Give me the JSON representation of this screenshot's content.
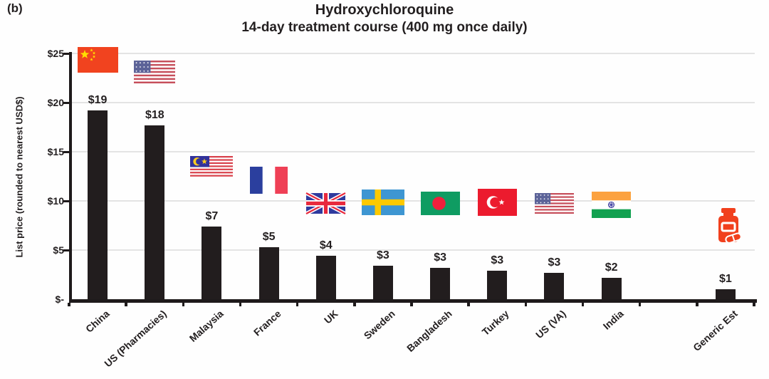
{
  "panel_label": "(b)",
  "chart_data": {
    "type": "bar",
    "title": "Hydroxychloroquine",
    "subtitle": "14-day treatment course (400 mg once daily)",
    "ylabel": "List price (rounded to nearest USD$)",
    "xlabel": "",
    "ylim": [
      0,
      25
    ],
    "ytick_values": [
      0,
      5,
      10,
      15,
      20,
      25
    ],
    "ytick_labels": [
      "$-",
      "$5",
      "$10",
      "$15",
      "$20",
      "$25"
    ],
    "grid": "horizontal gridlines every $5",
    "legend": "none",
    "categories": [
      "China",
      "US (Pharmacies)",
      "Malaysia",
      "France",
      "UK",
      "Sweden",
      "Bangladesh",
      "Turkey",
      "US (VA)",
      "India",
      "Generic Est"
    ],
    "values": [
      19,
      18,
      7,
      5,
      4,
      3,
      3,
      3,
      3,
      2,
      1
    ],
    "value_labels": [
      "$19",
      "$18",
      "$7",
      "$5",
      "$4",
      "$3",
      "$3",
      "$3",
      "$3",
      "$2",
      "$1"
    ],
    "bar_heights_usd_estimate": [
      19.2,
      17.7,
      7.4,
      5.3,
      4.4,
      3.4,
      3.2,
      2.9,
      2.7,
      2.2,
      1.0
    ],
    "icons": [
      "flag-china",
      "flag-us",
      "flag-malaysia",
      "flag-france",
      "flag-uk",
      "flag-sweden",
      "flag-bangladesh",
      "flag-turkey",
      "flag-us",
      "flag-india",
      "pill-bottle"
    ],
    "slots": [
      0,
      1,
      2,
      3,
      4,
      5,
      6,
      7,
      8,
      9,
      11
    ],
    "num_slots": 12,
    "colors": {
      "bar": "#221D1E",
      "axis": "#1E1A1B",
      "gridline": "#E4E4E4",
      "text": "#231F20",
      "background": "#FEFEFE",
      "pill_accent": "#F1401D"
    }
  }
}
